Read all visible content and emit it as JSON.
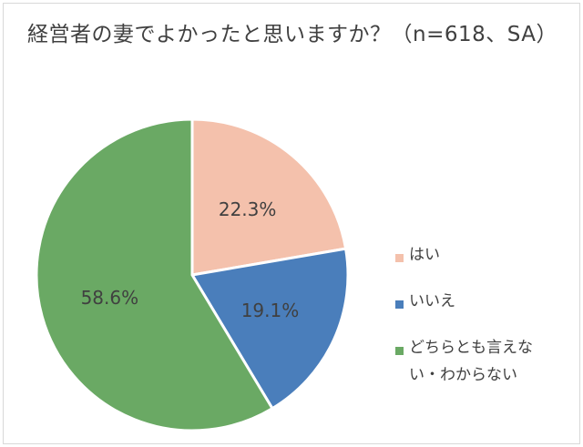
{
  "chart_data": {
    "type": "pie",
    "title": "経営者の妻でよかったと思いますか？（n=618、SA）",
    "categories": [
      "はい",
      "いいえ",
      "どちらとも言えない・わからない"
    ],
    "values": [
      22.3,
      19.1,
      58.6
    ],
    "labels": [
      "22.3%",
      "19.1%",
      "58.6%"
    ],
    "colors": [
      "#f4c1ac",
      "#4a7ebb",
      "#6aa964"
    ],
    "start_angle": "12 o'clock",
    "direction": "clockwise",
    "legend_position": "right"
  }
}
